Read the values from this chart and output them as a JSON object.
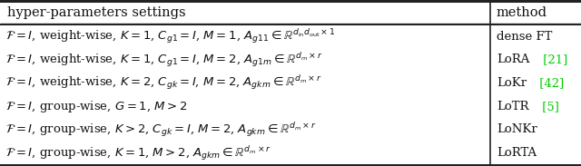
{
  "title_row": [
    "hyper-parameters settings",
    "method"
  ],
  "rows": [
    {
      "left": "$\\mathcal{F} = I$, weight-wise, $K = 1$, $C_{g1} = I$, $M = 1$, $A_{g11} \\in \\mathbb{R}^{d_{\\mathrm{in}}d_{\\mathrm{out}} \\times 1}$",
      "right": "dense FT",
      "right_cite": "",
      "cite_color": "#00cc00"
    },
    {
      "left": "$\\mathcal{F} = I$, weight-wise, $K = 1$, $C_{g1} = I$, $M = 2$, $A_{g1m} \\in \\mathbb{R}^{d_m \\times r}$",
      "right": "LoRA",
      "right_cite": " [21]",
      "cite_color": "#00cc00"
    },
    {
      "left": "$\\mathcal{F} = I$, weight-wise, $K = 2$, $C_{gk} = I$, $M = 2$, $A_{gkm} \\in \\mathbb{R}^{d_m \\times r}$",
      "right": "LoKr",
      "right_cite": " [42]",
      "cite_color": "#00cc00"
    },
    {
      "left": "$\\mathcal{F} = I$, group-wise, $G = 1$, $M > 2$",
      "right": "LoTR",
      "right_cite": " [5]",
      "cite_color": "#00cc00"
    },
    {
      "left": "$\\mathcal{F} = I$, group-wise, $K > 2$, $C_{gk} = I$, $M = 2$, $A_{gkm} \\in \\mathbb{R}^{d_m \\times r}$",
      "right": "LoNKr",
      "right_cite": "",
      "cite_color": "#00cc00"
    },
    {
      "left": "$\\mathcal{F} = I$, group-wise, $K = 1$, $M > 2$, $A_{gkm} \\in \\mathbb{R}^{d_m \\times r}$",
      "right": "LoRTA",
      "right_cite": "",
      "cite_color": "#00cc00"
    }
  ],
  "col_split": 0.845,
  "bg_color": "#f5f5f0",
  "border_color": "#222222",
  "text_color": "#111111",
  "font_size": 9.5,
  "title_font_size": 10.5
}
